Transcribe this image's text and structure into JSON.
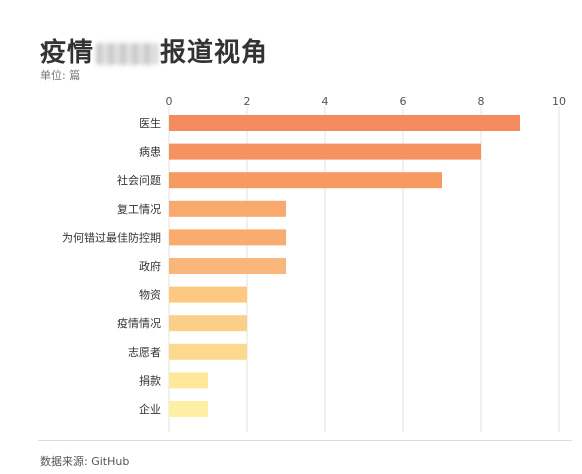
{
  "title": {
    "prefix": "疫情",
    "suffix": "报道视角"
  },
  "unit": "单位: 篇",
  "source": "数据来源: GitHub",
  "chart_data": {
    "type": "bar",
    "orientation": "horizontal",
    "categories": [
      "医生",
      "病患",
      "社会问题",
      "复工情况",
      "为何错过最佳防控期",
      "政府",
      "物资",
      "疫情情况",
      "志愿者",
      "捐款",
      "企业"
    ],
    "values": [
      9,
      8,
      7,
      3,
      3,
      3,
      2,
      2,
      2,
      1,
      1
    ],
    "xlim": [
      0,
      10
    ],
    "xticks": [
      0,
      2,
      4,
      6,
      8,
      10
    ],
    "grid": true,
    "colors": [
      "#F58A5F",
      "#F6925F",
      "#F79A62",
      "#F9A86E",
      "#F9AC70",
      "#FAB57A",
      "#FCC882",
      "#FCCF88",
      "#FDD98F",
      "#FEE89C",
      "#FEEFA6"
    ]
  }
}
